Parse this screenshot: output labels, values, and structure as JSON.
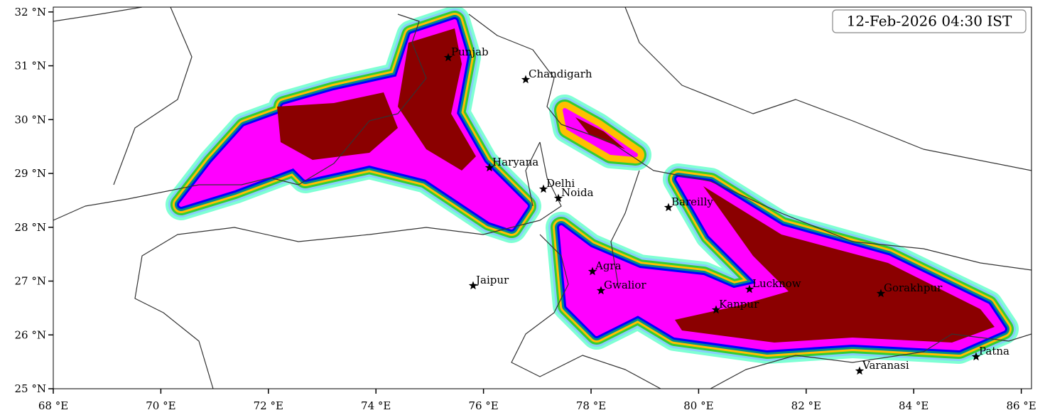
{
  "timestamp": "12-Feb-2026 04:30 IST",
  "map": {
    "xlim": [
      68,
      86.19
    ],
    "ylim": [
      25,
      32.09
    ],
    "xticks": [
      {
        "value": 68,
        "label": "68 °E"
      },
      {
        "value": 70,
        "label": "70 °E"
      },
      {
        "value": 72,
        "label": "72 °E"
      },
      {
        "value": 74,
        "label": "74 °E"
      },
      {
        "value": 76,
        "label": "76 °E"
      },
      {
        "value": 78,
        "label": "78 °E"
      },
      {
        "value": 80,
        "label": "80 °E"
      },
      {
        "value": 82,
        "label": "82 °E"
      },
      {
        "value": 84,
        "label": "84 °E"
      },
      {
        "value": 86,
        "label": "86 °E"
      }
    ],
    "yticks": [
      {
        "value": 25,
        "label": "25 °N"
      },
      {
        "value": 26,
        "label": "26 °N"
      },
      {
        "value": 27,
        "label": "27 °N"
      },
      {
        "value": 28,
        "label": "28 °N"
      },
      {
        "value": 29,
        "label": "29 °N"
      },
      {
        "value": 30,
        "label": "30 °N"
      },
      {
        "value": 31,
        "label": "31 °N"
      },
      {
        "value": 32,
        "label": "32 °N"
      }
    ]
  },
  "cities": [
    "Punjab",
    "Chandigarh",
    "Haryana",
    "Delhi",
    "Noida",
    "Bareilly",
    "Agra",
    "Jaipur",
    "Gwalior",
    "Lucknow",
    "Kanpur",
    "Gorakhpur",
    "Varanasi",
    "Patna"
  ]
}
